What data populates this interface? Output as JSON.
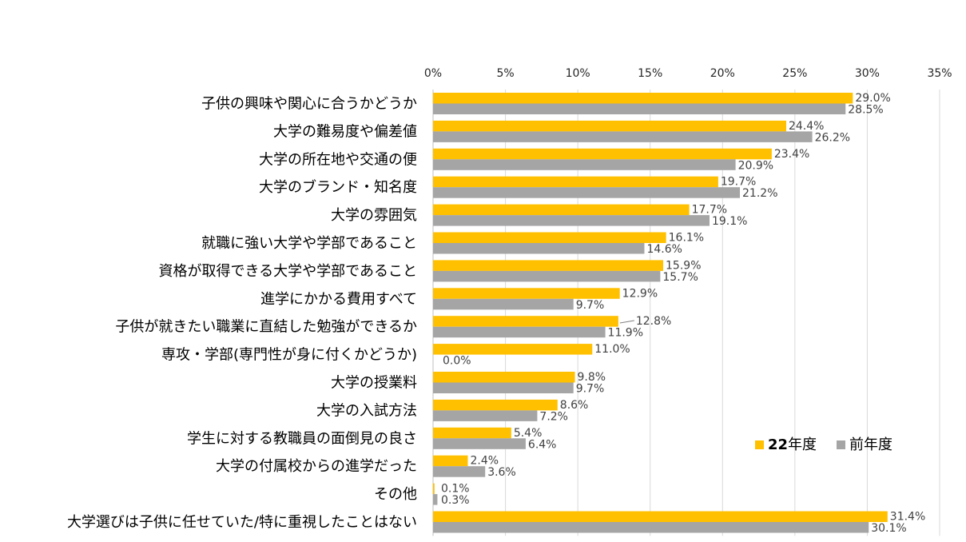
{
  "chart_data": {
    "type": "bar",
    "orientation": "horizontal",
    "xlim": [
      0,
      35
    ],
    "ticks": [
      "0%",
      "5%",
      "10%",
      "15%",
      "20%",
      "25%",
      "30%",
      "35%"
    ],
    "tick_values": [
      0,
      5,
      10,
      15,
      20,
      25,
      30,
      35
    ],
    "grid": true,
    "legend_position": "bottom-right",
    "categories": [
      "子供の興味や関心に合うかどうか",
      "大学の難易度や偏差値",
      "大学の所在地や交通の便",
      "大学のブランド・知名度",
      "大学の雰囲気",
      "就職に強い大学や学部であること",
      "資格が取得できる大学や学部であること",
      "進学にかかる費用すべて",
      "子供が就きたい職業に直結した勉強ができるか",
      "専攻・学部(専門性が身に付くかどうか)",
      "大学の授業料",
      "大学の入試方法",
      "学生に対する教職員の面倒見の良さ",
      "大学の付属校からの進学だった",
      "その他",
      "大学選びは子供に任せていた/特に重視したことはない"
    ],
    "series": [
      {
        "name": "22年度",
        "color": "#FFC000",
        "values": [
          29.0,
          24.4,
          23.4,
          19.7,
          17.7,
          16.1,
          15.9,
          12.9,
          12.8,
          11.0,
          9.8,
          8.6,
          5.4,
          2.4,
          0.1,
          31.4
        ],
        "labels": [
          "29.0%",
          "24.4%",
          "23.4%",
          "19.7%",
          "17.7%",
          "16.1%",
          "15.9%",
          "12.9%",
          "12.8%",
          "11.0%",
          "9.8%",
          "8.6%",
          "5.4%",
          "2.4%",
          "0.1%",
          "31.4%"
        ]
      },
      {
        "name": "前年度",
        "color": "#A5A5A5",
        "values": [
          28.5,
          26.2,
          20.9,
          21.2,
          19.1,
          14.6,
          15.7,
          9.7,
          11.9,
          0.0,
          9.7,
          7.2,
          6.4,
          3.6,
          0.3,
          30.1
        ],
        "labels": [
          "28.5%",
          "26.2%",
          "20.9%",
          "21.2%",
          "19.1%",
          "14.6%",
          "15.7%",
          "9.7%",
          "11.9%",
          "0.0%",
          "9.7%",
          "7.2%",
          "6.4%",
          "3.6%",
          "0.3%",
          "30.1%"
        ]
      }
    ]
  }
}
